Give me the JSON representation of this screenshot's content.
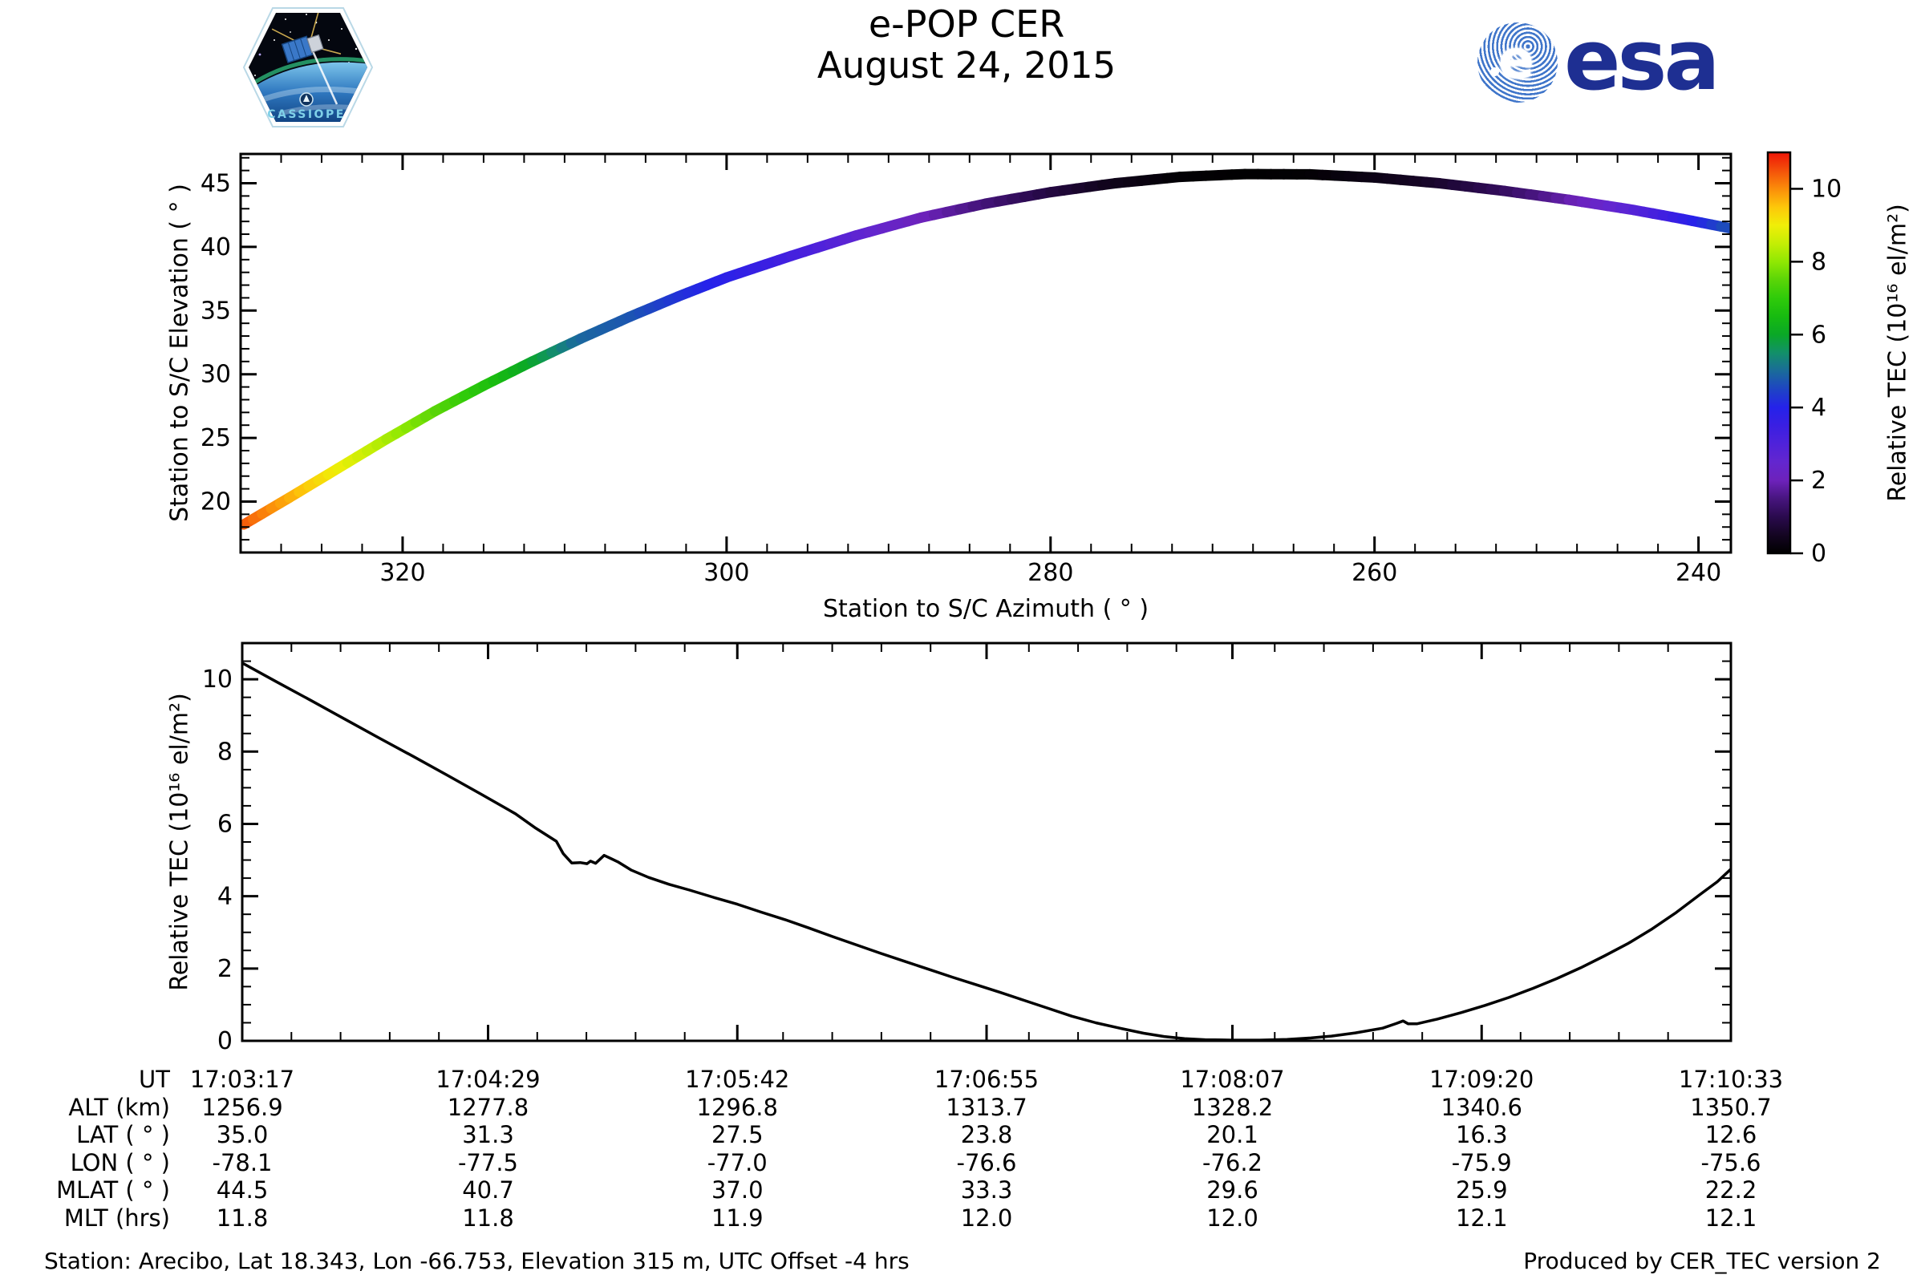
{
  "header": {
    "title": "e-POP CER",
    "date": "August 24, 2015"
  },
  "logos": {
    "cassiope": {
      "label": "CASSIOPE"
    },
    "esa": {
      "wordmark": "esa",
      "e_letter": "e",
      "brand_blue": "#1e2f92",
      "globe_blue": "#4076ca"
    }
  },
  "colorbar": {
    "label": "Relative TEC (10¹⁶ el/m²)",
    "ticks": [
      0,
      2,
      4,
      6,
      8,
      10
    ],
    "vmin": 0,
    "vmax": 11,
    "stops": [
      {
        "v": 0.0,
        "c": "#000000"
      },
      {
        "v": 0.5,
        "c": "#140522"
      },
      {
        "v": 1.0,
        "c": "#2a0a4e"
      },
      {
        "v": 1.5,
        "c": "#47157e"
      },
      {
        "v": 2.0,
        "c": "#6d22bb"
      },
      {
        "v": 2.5,
        "c": "#6326cf"
      },
      {
        "v": 3.0,
        "c": "#4f22da"
      },
      {
        "v": 3.5,
        "c": "#3a1fe2"
      },
      {
        "v": 4.0,
        "c": "#2522ea"
      },
      {
        "v": 4.5,
        "c": "#1e44c4"
      },
      {
        "v": 5.0,
        "c": "#1a6b9a"
      },
      {
        "v": 5.5,
        "c": "#129069"
      },
      {
        "v": 6.0,
        "c": "#0aa827"
      },
      {
        "v": 6.5,
        "c": "#17bb10"
      },
      {
        "v": 7.0,
        "c": "#2fcb0a"
      },
      {
        "v": 7.5,
        "c": "#5ad507"
      },
      {
        "v": 8.0,
        "c": "#90e803"
      },
      {
        "v": 8.5,
        "c": "#c4ee05"
      },
      {
        "v": 9.0,
        "c": "#f0ee08"
      },
      {
        "v": 9.5,
        "c": "#fdc70a"
      },
      {
        "v": 10.0,
        "c": "#fb8d0a"
      },
      {
        "v": 10.5,
        "c": "#f4510a"
      },
      {
        "v": 11.0,
        "c": "#ee1507"
      }
    ]
  },
  "chart_data": [
    {
      "id": "elevation-azimuth-track",
      "type": "line",
      "title": "",
      "xlabel": "Station to S/C Azimuth ( ° )",
      "ylabel": "Station to S/C Elevation ( ° )",
      "xlim": [
        330,
        238
      ],
      "ylim": [
        16.0,
        47.3
      ],
      "x_ticks": [
        320,
        300,
        280,
        260,
        240
      ],
      "y_ticks": [
        20,
        25,
        30,
        35,
        40,
        45
      ],
      "x_minor_step": 2.5,
      "y_minor_step": 1,
      "x_axis_reversed": true,
      "color_by": "tec",
      "track": [
        {
          "az": 329.8,
          "elev": 18.2,
          "tec": 10.45
        },
        {
          "az": 327.0,
          "elev": 20.3,
          "tec": 9.76
        },
        {
          "az": 324.0,
          "elev": 22.6,
          "tec": 9.02
        },
        {
          "az": 321.0,
          "elev": 24.9,
          "tec": 8.28
        },
        {
          "az": 318.0,
          "elev": 27.1,
          "tec": 7.54
        },
        {
          "az": 315.0,
          "elev": 29.1,
          "tec": 6.78
        },
        {
          "az": 312.0,
          "elev": 31.0,
          "tec": 5.98
        },
        {
          "az": 309.0,
          "elev": 32.8,
          "tec": 4.95
        },
        {
          "az": 306.0,
          "elev": 34.5,
          "tec": 4.75
        },
        {
          "az": 303.0,
          "elev": 36.1,
          "tec": 4.28
        },
        {
          "az": 300.0,
          "elev": 37.6,
          "tec": 3.87
        },
        {
          "az": 296.0,
          "elev": 39.3,
          "tec": 3.3
        },
        {
          "az": 292.0,
          "elev": 40.9,
          "tec": 2.66
        },
        {
          "az": 288.0,
          "elev": 42.3,
          "tec": 2.05
        },
        {
          "az": 284.0,
          "elev": 43.4,
          "tec": 1.46
        },
        {
          "az": 280.0,
          "elev": 44.3,
          "tec": 0.88
        },
        {
          "az": 276.0,
          "elev": 45.0,
          "tec": 0.38
        },
        {
          "az": 272.0,
          "elev": 45.5,
          "tec": 0.08
        },
        {
          "az": 268.0,
          "elev": 45.72,
          "tec": 0.02
        },
        {
          "az": 264.0,
          "elev": 45.7,
          "tec": 0.07
        },
        {
          "az": 260.0,
          "elev": 45.45,
          "tec": 0.3
        },
        {
          "az": 256.0,
          "elev": 45.0,
          "tec": 0.62
        },
        {
          "az": 252.0,
          "elev": 44.4,
          "tec": 1.15
        },
        {
          "az": 248.0,
          "elev": 43.7,
          "tec": 1.85
        },
        {
          "az": 244.0,
          "elev": 42.9,
          "tec": 2.78
        },
        {
          "az": 241.0,
          "elev": 42.2,
          "tec": 3.62
        },
        {
          "az": 238.0,
          "elev": 41.45,
          "tec": 4.7
        }
      ]
    },
    {
      "id": "tec-timeseries",
      "type": "line",
      "title": "",
      "xlabel": "",
      "ylabel": "Relative TEC (10¹⁶ el/m²)",
      "xlim_seconds": [
        0,
        436
      ],
      "ylim": [
        0,
        11
      ],
      "y_ticks": [
        0,
        2,
        4,
        6,
        8,
        10
      ],
      "y_minor_step": 0.5,
      "x_tick_seconds": [
        0,
        72,
        145,
        218,
        290,
        363,
        436
      ],
      "x_tick_labels": [
        "17:03:17",
        "17:04:29",
        "17:05:42",
        "17:06:55",
        "17:08:07",
        "17:09:20",
        "17:10:33"
      ],
      "line_color": "#000000",
      "series": [
        [
          0,
          10.45
        ],
        [
          10,
          9.93
        ],
        [
          20,
          9.42
        ],
        [
          30,
          8.9
        ],
        [
          40,
          8.38
        ],
        [
          50,
          7.87
        ],
        [
          60,
          7.35
        ],
        [
          70,
          6.82
        ],
        [
          80,
          6.28
        ],
        [
          86,
          5.88
        ],
        [
          92,
          5.52
        ],
        [
          94,
          5.18
        ],
        [
          96.5,
          4.92
        ],
        [
          99,
          4.93
        ],
        [
          101,
          4.9
        ],
        [
          102,
          4.97
        ],
        [
          103.5,
          4.91
        ],
        [
          106,
          5.13
        ],
        [
          110,
          4.95
        ],
        [
          114,
          4.72
        ],
        [
          119,
          4.52
        ],
        [
          125,
          4.33
        ],
        [
          131,
          4.17
        ],
        [
          138,
          3.97
        ],
        [
          145,
          3.78
        ],
        [
          152,
          3.56
        ],
        [
          159,
          3.35
        ],
        [
          166,
          3.12
        ],
        [
          173,
          2.88
        ],
        [
          180,
          2.65
        ],
        [
          187,
          2.42
        ],
        [
          194,
          2.2
        ],
        [
          201,
          1.98
        ],
        [
          208,
          1.76
        ],
        [
          215,
          1.55
        ],
        [
          222,
          1.34
        ],
        [
          229,
          1.12
        ],
        [
          236,
          0.9
        ],
        [
          243,
          0.68
        ],
        [
          250,
          0.5
        ],
        [
          257,
          0.35
        ],
        [
          264,
          0.21
        ],
        [
          270,
          0.12
        ],
        [
          276,
          0.06
        ],
        [
          282,
          0.03
        ],
        [
          290,
          0.02
        ],
        [
          298,
          0.02
        ],
        [
          306,
          0.04
        ],
        [
          313,
          0.08
        ],
        [
          319,
          0.13
        ],
        [
          326,
          0.22
        ],
        [
          334,
          0.35
        ],
        [
          338,
          0.48
        ],
        [
          340,
          0.55
        ],
        [
          341.5,
          0.47
        ],
        [
          344,
          0.47
        ],
        [
          350,
          0.6
        ],
        [
          357,
          0.78
        ],
        [
          364,
          0.98
        ],
        [
          371,
          1.2
        ],
        [
          378,
          1.45
        ],
        [
          385,
          1.72
        ],
        [
          392,
          2.02
        ],
        [
          399,
          2.35
        ],
        [
          406,
          2.7
        ],
        [
          413,
          3.1
        ],
        [
          420,
          3.55
        ],
        [
          427,
          4.05
        ],
        [
          432,
          4.4
        ],
        [
          436,
          4.75
        ]
      ]
    }
  ],
  "table": {
    "rows": [
      {
        "label": "UT",
        "values": [
          "17:03:17",
          "17:04:29",
          "17:05:42",
          "17:06:55",
          "17:08:07",
          "17:09:20",
          "17:10:33"
        ]
      },
      {
        "label": "ALT (km)",
        "values": [
          "1256.9",
          "1277.8",
          "1296.8",
          "1313.7",
          "1328.2",
          "1340.6",
          "1350.7"
        ]
      },
      {
        "label": "LAT ( ° )",
        "values": [
          "35.0",
          "31.3",
          "27.5",
          "23.8",
          "20.1",
          "16.3",
          "12.6"
        ]
      },
      {
        "label": "LON ( ° )",
        "values": [
          "-78.1",
          "-77.5",
          "-77.0",
          "-76.6",
          "-76.2",
          "-75.9",
          "-75.6"
        ]
      },
      {
        "label": "MLAT ( ° )",
        "values": [
          "44.5",
          "40.7",
          "37.0",
          "33.3",
          "29.6",
          "25.9",
          "22.2"
        ]
      },
      {
        "label": "MLT (hrs)",
        "values": [
          "11.8",
          "11.8",
          "11.9",
          "12.0",
          "12.0",
          "12.1",
          "12.1"
        ]
      }
    ]
  },
  "footer": {
    "left": "Station: Arecibo, Lat 18.343, Lon -66.753, Elevation 315 m, UTC Offset -4 hrs",
    "right": "Produced by CER_TEC version 2"
  }
}
